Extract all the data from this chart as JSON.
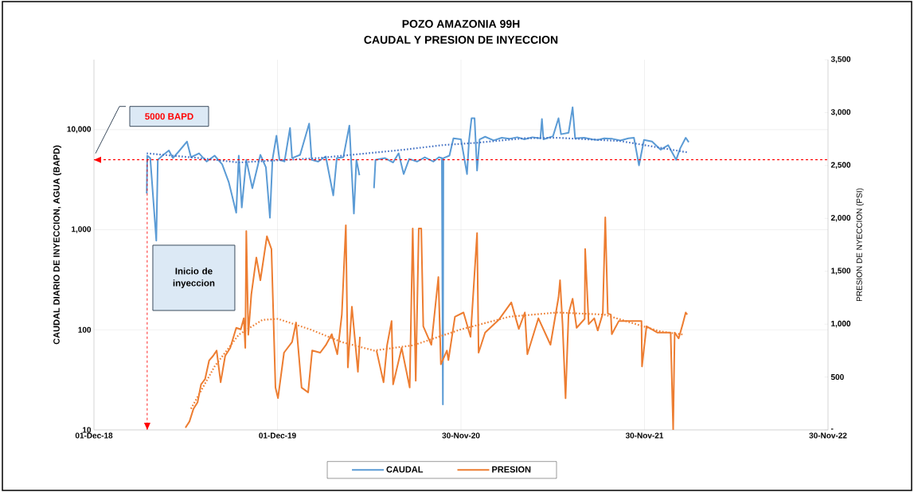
{
  "chart_data": {
    "type": "line",
    "title": "POZO AMAZONIA 99H",
    "subtitle": "CAUDAL Y PRESION DE INYECCION",
    "ylabel": "CAUDAL DIARIO DE INYECCION, AGUA (BAPD)",
    "y2label": "PRESION DE NYECCION (PSI)",
    "log": "y",
    "grid": true,
    "legend": "bottom",
    "marker": "none",
    "xlim": [
      "2018-12-01",
      "2022-11-30"
    ],
    "xticks": [
      {
        "value": "2018-12-01",
        "label": "01-Dec-18"
      },
      {
        "value": "2019-12-01",
        "label": "01-Dec-19"
      },
      {
        "value": "2020-11-30",
        "label": "30-Nov-20"
      },
      {
        "value": "2021-11-30",
        "label": "30-Nov-21"
      },
      {
        "value": "2022-11-30",
        "label": "30-Nov-22"
      }
    ],
    "ylim": [
      10,
      50000
    ],
    "yticks": [
      10,
      100,
      {
        "value": 1000,
        "label": "1,000"
      },
      {
        "value": 10000,
        "label": "10,000"
      }
    ],
    "y2lim": [
      0,
      3500
    ],
    "y2ticks": [
      {
        "value": 0,
        "label": "-"
      },
      500,
      {
        "value": 1000,
        "label": "1,000"
      },
      {
        "value": 1500,
        "label": "1,500"
      },
      {
        "value": 2000,
        "label": "2,000"
      },
      {
        "value": 2500,
        "label": "2,500"
      },
      {
        "value": 3000,
        "label": "3,000"
      },
      {
        "value": 3500,
        "label": "3,500"
      }
    ],
    "series": [
      {
        "name": "CAUDAL",
        "color": "#5b9bd5",
        "x": [
          "2019-03-16",
          "2019-03-17",
          "2019-03-23",
          "2019-04-04",
          "2019-04-07",
          "2019-04-18",
          "2019-04-29",
          "2019-05-07",
          "2019-05-18",
          "2019-06-04",
          "2019-06-12",
          "2019-06-28",
          "2019-07-13",
          "2019-07-29",
          "2019-08-13",
          "2019-08-26",
          "2019-09-10",
          "2019-09-15",
          "2019-09-21",
          "2019-09-30",
          "2019-10-12",
          "2019-10-28",
          "2019-11-08",
          "2019-11-16",
          "2019-11-21",
          "2019-11-29",
          "2019-12-05",
          "2019-12-15",
          "2019-12-26",
          "2019-12-30",
          "2020-01-15",
          "2020-02-02",
          "2020-02-07",
          "2020-02-20",
          "2020-03-06",
          "2020-03-21",
          "2020-03-28",
          "2020-04-10",
          "2020-04-22",
          "2020-05-01",
          "2020-05-06",
          "2020-05-12",
          "2020-05-25",
          "2020-06-10",
          "2020-06-13",
          "2020-07-02",
          "2020-07-18",
          "2020-07-29",
          "2020-08-08",
          "2020-08-19",
          "2020-09-04",
          "2020-09-19",
          "2020-10-06",
          "2020-10-17",
          "2020-10-23",
          "2020-10-25",
          "2020-10-26",
          "2020-11-07",
          "2020-11-15",
          "2020-11-30",
          "2020-12-12",
          "2020-12-16",
          "2020-12-21",
          "2020-12-27",
          "2021-01-01",
          "2021-01-06",
          "2021-01-17",
          "2021-02-03",
          "2021-02-19",
          "2021-03-06",
          "2021-03-22",
          "2021-04-05",
          "2021-04-21",
          "2021-05-07",
          "2021-05-10",
          "2021-05-13",
          "2021-06-01",
          "2021-06-12",
          "2021-06-17",
          "2021-07-02",
          "2021-07-10",
          "2021-07-15",
          "2021-08-02",
          "2021-08-18",
          "2021-08-29",
          "2021-09-11",
          "2021-09-27",
          "2021-10-13",
          "2021-10-29",
          "2021-11-09",
          "2021-11-19",
          "2021-11-29",
          "2021-12-15",
          "2022-01-01",
          "2022-01-16",
          "2022-02-01",
          "2022-02-09",
          "2022-02-20",
          "2022-02-26"
        ],
        "values": [
          2300,
          5500,
          5200,
          780,
          5000,
          5600,
          6200,
          5200,
          6000,
          7600,
          5300,
          5800,
          4800,
          5500,
          4500,
          3000,
          1480,
          5500,
          1670,
          5000,
          2600,
          5600,
          4200,
          1320,
          5000,
          8700,
          5000,
          4800,
          10400,
          5200,
          5600,
          11500,
          5000,
          4800,
          5400,
          2200,
          5200,
          5300,
          11000,
          1450,
          5000,
          3500,
          null,
          2600,
          5000,
          5200,
          4700,
          5800,
          3600,
          5100,
          4800,
          5300,
          4800,
          5300,
          5200,
          18,
          5200,
          5500,
          8200,
          8000,
          3600,
          7800,
          13000,
          13000,
          3900,
          8000,
          8500,
          7800,
          8300,
          8100,
          8400,
          8000,
          8400,
          8200,
          12800,
          8000,
          8600,
          13000,
          9000,
          9300,
          16700,
          8200,
          8300,
          8000,
          7900,
          8200,
          8100,
          7800,
          8200,
          8300,
          4400,
          7900,
          7600,
          6300,
          7000,
          5000,
          6500,
          8300,
          7500
        ]
      },
      {
        "name": "PRESION",
        "color": "#ed7d31",
        "axis": "y2",
        "x": [
          "2019-06-01",
          "2019-06-09",
          "2019-06-17",
          "2019-06-25",
          "2019-07-02",
          "2019-07-10",
          "2019-07-18",
          "2019-07-26",
          "2019-08-02",
          "2019-08-10",
          "2019-08-19",
          "2019-08-29",
          "2019-09-10",
          "2019-09-19",
          "2019-09-25",
          "2019-09-28",
          "2019-09-30",
          "2019-10-04",
          "2019-10-10",
          "2019-10-20",
          "2019-10-28",
          "2019-11-10",
          "2019-11-19",
          "2019-11-27",
          "2019-12-02",
          "2019-12-14",
          "2019-12-30",
          "2020-01-07",
          "2020-01-18",
          "2020-01-31",
          "2020-02-08",
          "2020-02-24",
          "2020-03-06",
          "2020-03-18",
          "2020-03-29",
          "2020-04-07",
          "2020-04-15",
          "2020-04-19",
          "2020-04-27",
          "2020-05-09",
          "2020-05-13",
          "2020-05-25",
          "2020-06-15",
          "2020-06-29",
          "2020-07-06",
          "2020-07-15",
          "2020-07-18",
          "2020-08-04",
          "2020-08-20",
          "2020-08-26",
          "2020-09-01",
          "2020-09-07",
          "2020-09-12",
          "2020-09-16",
          "2020-10-02",
          "2020-10-16",
          "2020-10-21",
          "2020-11-02",
          "2020-11-05",
          "2020-11-18",
          "2020-12-05",
          "2020-12-19",
          "2021-01-01",
          "2021-01-04",
          "2021-01-17",
          "2021-02-13",
          "2021-03-10",
          "2021-03-25",
          "2021-04-06",
          "2021-04-11",
          "2021-05-03",
          "2021-05-27",
          "2021-06-12",
          "2021-06-15",
          "2021-06-20",
          "2021-06-26",
          "2021-07-02",
          "2021-07-10",
          "2021-07-18",
          "2021-08-03",
          "2021-08-04",
          "2021-08-11",
          "2021-08-22",
          "2021-08-29",
          "2021-09-08",
          "2021-09-13",
          "2021-09-18",
          "2021-09-24",
          "2021-09-26",
          "2021-10-10",
          "2021-11-24",
          "2021-11-25",
          "2021-12-04",
          "2021-12-26",
          "2022-01-21",
          "2022-01-26",
          "2022-01-29",
          "2022-02-06",
          "2022-02-14",
          "2022-02-20",
          "2022-02-23"
        ],
        "values": [
          20,
          80,
          200,
          260,
          430,
          480,
          655,
          700,
          750,
          450,
          700,
          775,
          965,
          950,
          1055,
          775,
          1880,
          900,
          1280,
          1630,
          1415,
          1830,
          1710,
          400,
          300,
          730,
          830,
          1015,
          400,
          355,
          750,
          730,
          800,
          905,
          715,
          1090,
          1935,
          590,
          1165,
          550,
          880,
          null,
          750,
          450,
          800,
          1030,
          430,
          775,
          400,
          1905,
          465,
          1905,
          1905,
          980,
          805,
          1445,
          620,
          750,
          660,
          1070,
          1110,
          880,
          1860,
          730,
          920,
          1040,
          1205,
          955,
          1110,
          715,
          1055,
          805,
          1255,
          1415,
          1000,
          300,
          1100,
          1240,
          965,
          1050,
          1710,
          1000,
          1055,
          940,
          1100,
          2010,
          1100,
          1090,
          905,
          1030,
          1030,
          600,
          980,
          920,
          920,
          0,
          920,
          865,
          1000,
          1110,
          1090
        ]
      },
      {
        "color": "#4472c4",
        "line_style": "dotted",
        "x": [
          "2019-03-16",
          "2019-06-28",
          "2019-09-15",
          "2020-02-20",
          "2020-08-08",
          "2020-10-23",
          "2021-01-01",
          "2021-04-05",
          "2021-06-09",
          "2021-10-13",
          "2022-02-26"
        ],
        "values": [
          5800,
          5200,
          4700,
          5200,
          6300,
          7000,
          7400,
          8200,
          8300,
          7700,
          5900
        ]
      },
      {
        "color": "#ed7d31",
        "axis": "y2",
        "line_style": "dotted",
        "x": [
          "2019-06-12",
          "2019-07-29",
          "2019-09-15",
          "2019-11-01",
          "2019-12-02",
          "2020-02-04",
          "2020-04-07",
          "2020-06-10",
          "2020-08-27",
          "2020-11-30",
          "2021-03-06",
          "2021-06-09",
          "2021-09-11",
          "2022-01-01",
          "2022-02-17"
        ],
        "values": [
          200,
          600,
          900,
          1040,
          1050,
          950,
          830,
          750,
          800,
          950,
          1070,
          1110,
          1090,
          930,
          900
        ]
      }
    ],
    "ref_lines": [
      {
        "axis": "y",
        "value": 5000,
        "label": "5000 BAPD",
        "color": "#ff0000",
        "line_style": "dashed"
      },
      {
        "axis": "x",
        "value": "2019-03-17",
        "label": "Inicio de inyeccion",
        "color": "#ff0000",
        "line_style": "dashed"
      }
    ]
  }
}
